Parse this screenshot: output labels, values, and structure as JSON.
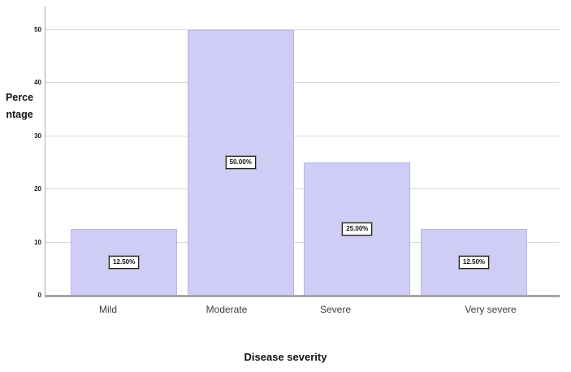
{
  "chart_data": {
    "type": "bar",
    "title": "",
    "categories": [
      "Mild",
      "Moderate",
      "Severe",
      "Very severe"
    ],
    "values": [
      12.5,
      50,
      25,
      12.5
    ],
    "value_labels": [
      "12.50%",
      "50.00%",
      "25.00%",
      "12.50%"
    ],
    "xlabel": "Disease severity",
    "ylabel": "Percentage",
    "ylabel_lines": [
      "Perce",
      "ntage"
    ],
    "yticks": [
      0,
      10,
      20,
      30,
      40,
      50
    ],
    "ylim": [
      0,
      54.4
    ],
    "grid": true,
    "legend": "none",
    "colors": {
      "bar_fill": "#cfccf6",
      "bar_border": "#b9b4ef",
      "gridline": "#d9d9d9",
      "y_axis_line": "#ababab",
      "x_axis_line": "#a6a6a6",
      "value_box_bg": "#ffffff",
      "value_box_border": "#222222",
      "tick_text": "#1a1a1a",
      "category_text": "#3d3d3d",
      "title_text": "#111111"
    }
  }
}
